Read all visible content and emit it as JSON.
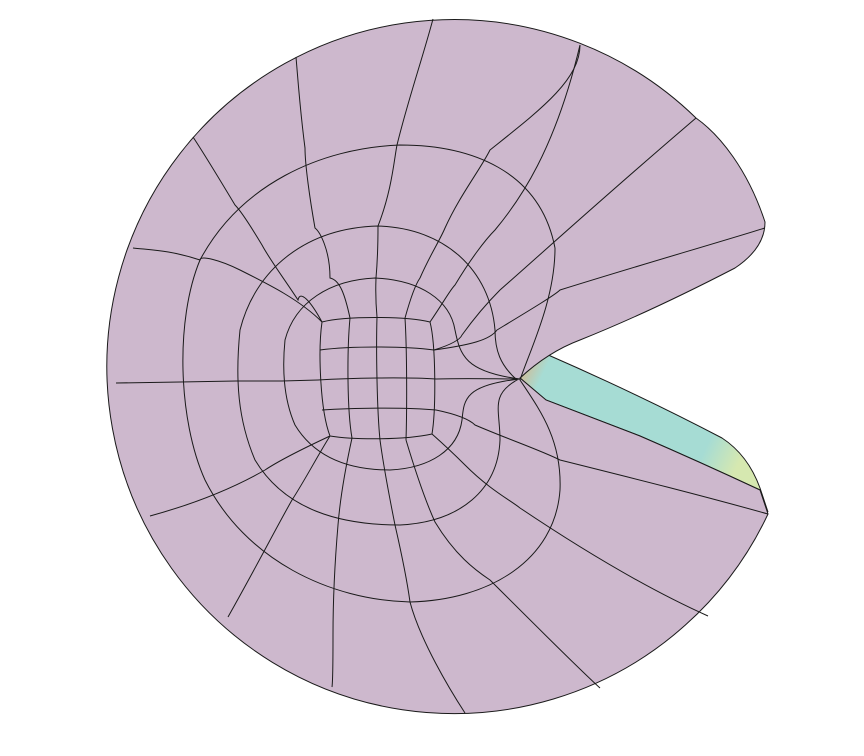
{
  "colors": {
    "background": "#ffffff",
    "surface": "#cdb8cd",
    "mesh_line": "#1a1a1a",
    "wall_front": "#a6dcd4",
    "wall_shade": "#8fcfc6",
    "wall_orange": "#e2ad7c",
    "wall_lime": "#d6e8b0"
  },
  "figure": {
    "description_shape": "cracked-disk finite element mesh",
    "mesh": {
      "radial_lines": 16,
      "rings": 4,
      "core_grid": "4x4"
    }
  }
}
